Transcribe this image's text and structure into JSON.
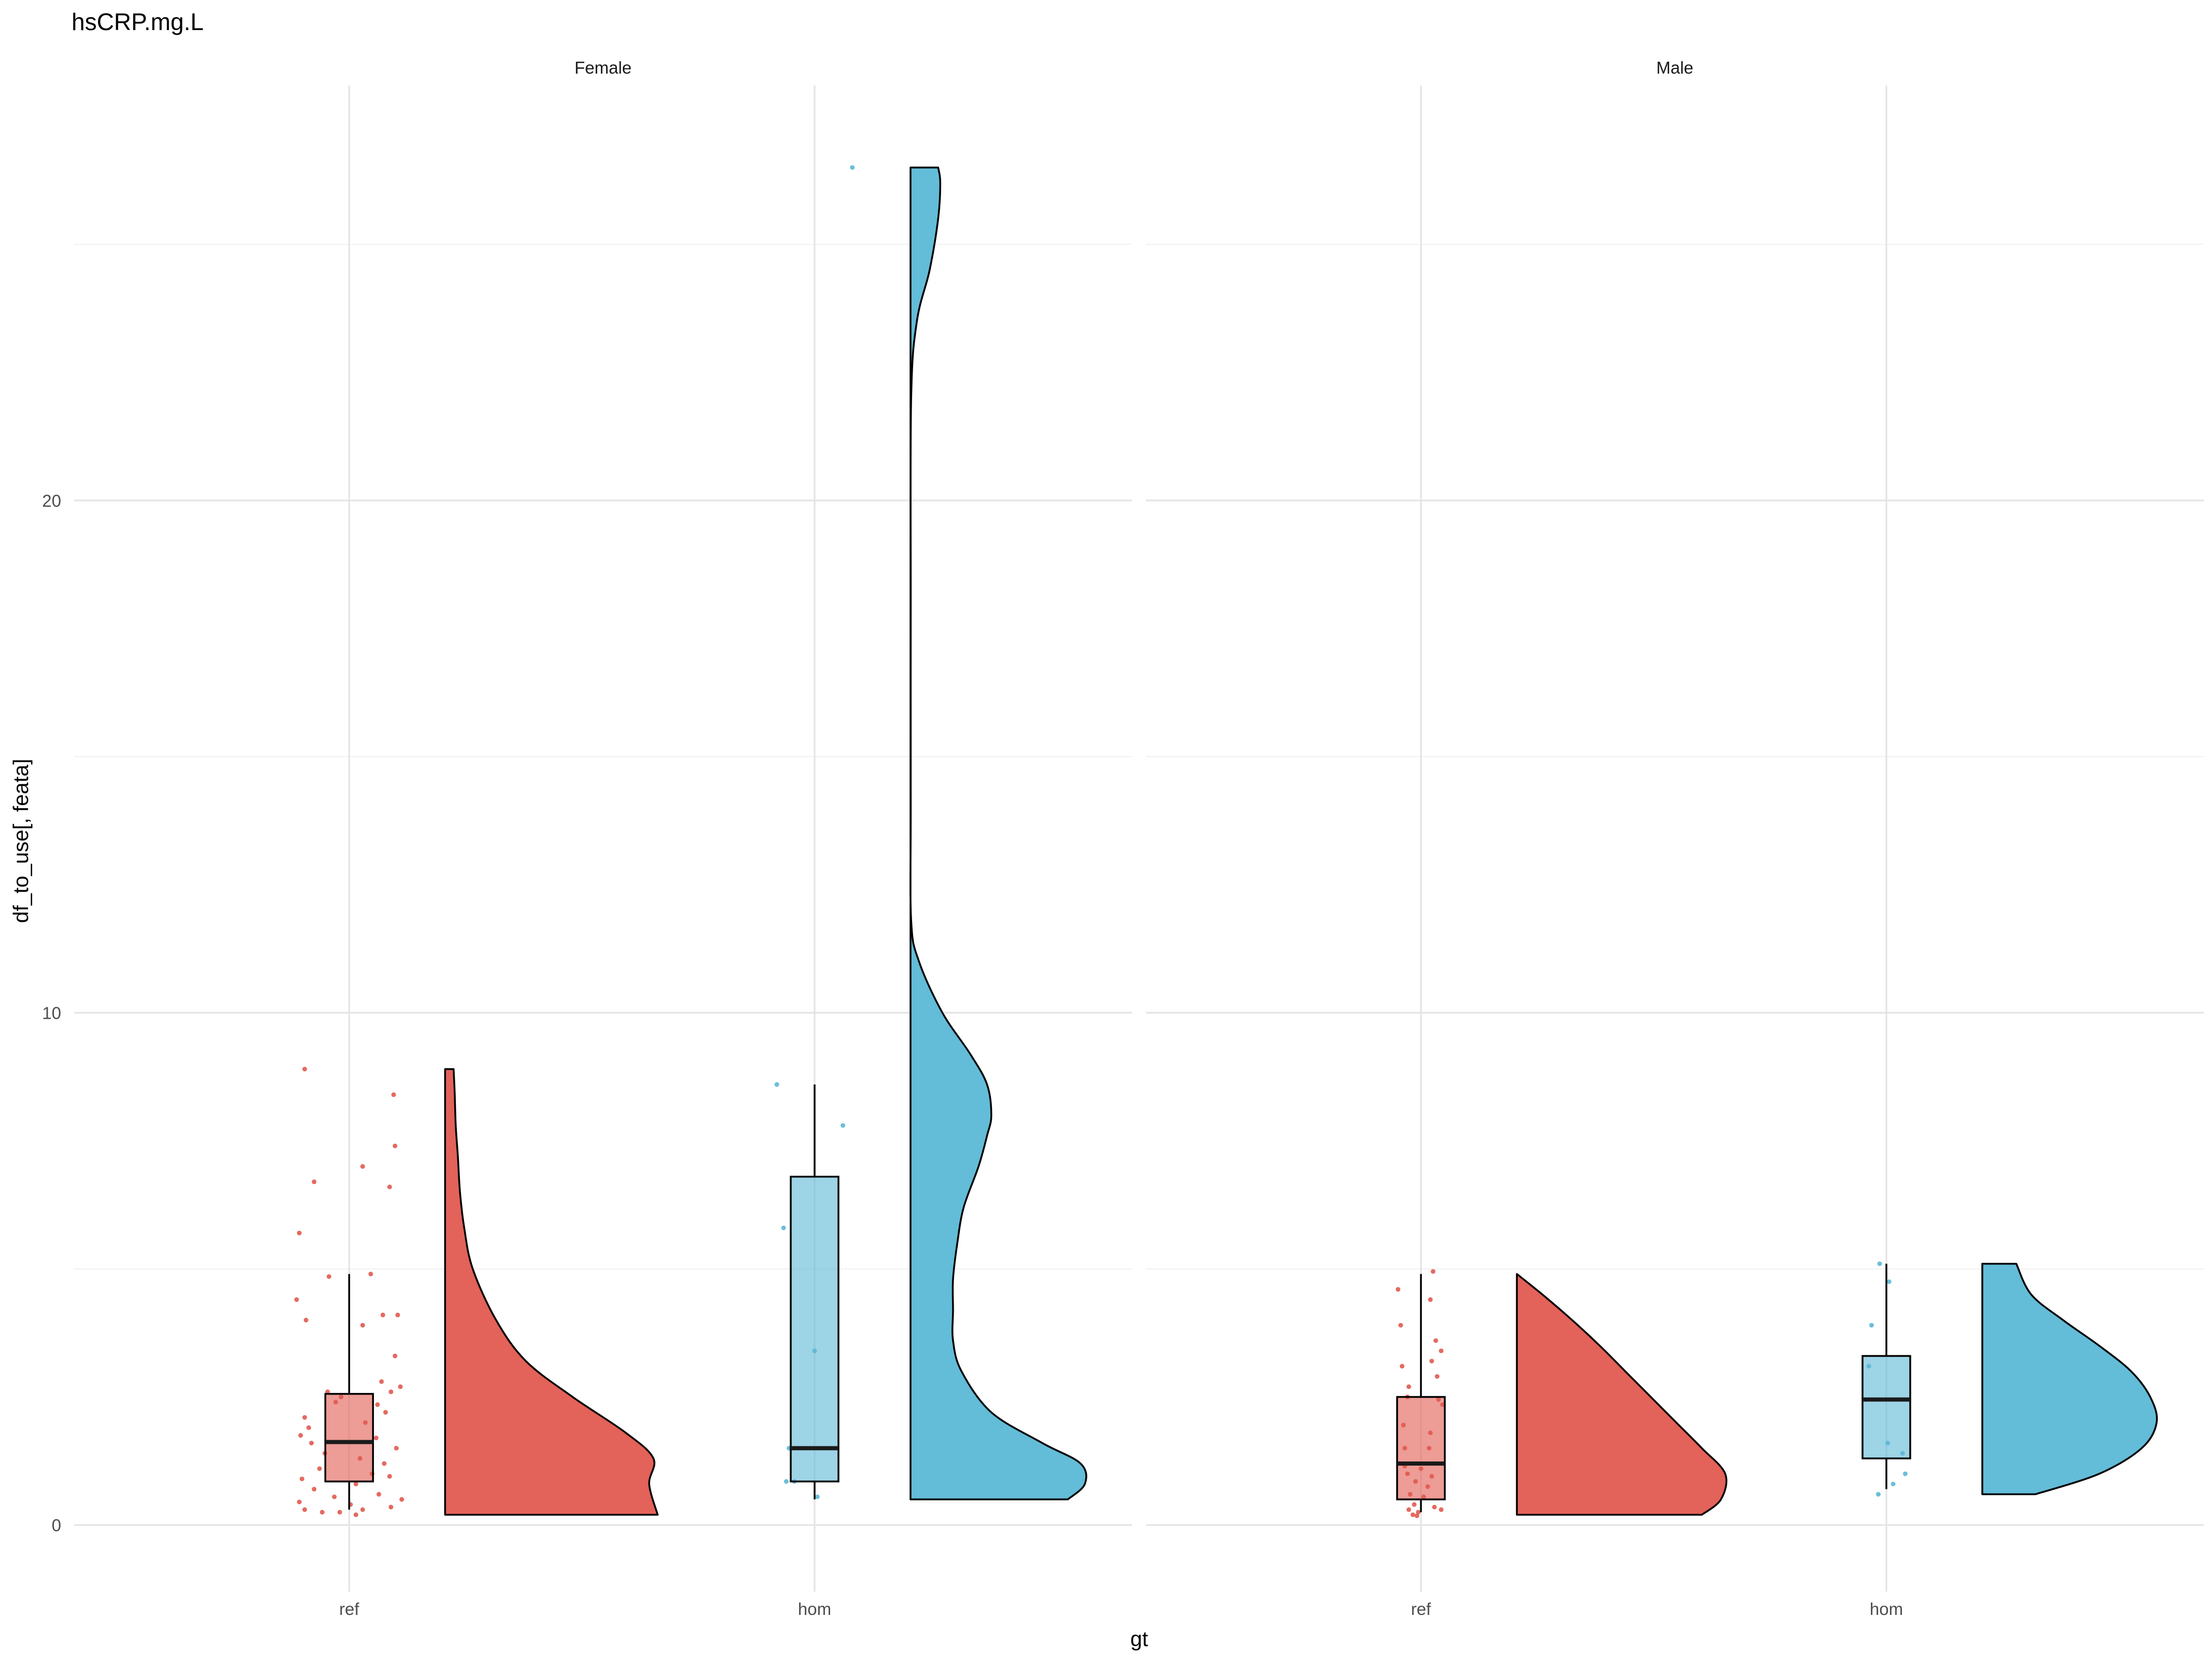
{
  "chart_data": {
    "type": "raincloud",
    "title": "hsCRP.mg.L",
    "xlabel": "gt",
    "ylabel": "df_to_use[, feata]",
    "ylim": [
      -1.3,
      28.1
    ],
    "yticks": [
      0,
      10,
      20
    ],
    "grid": true,
    "categories": [
      "ref",
      "hom"
    ],
    "colors": {
      "ref": "#E15A50",
      "hom": "#5BB8D6"
    },
    "panels": [
      {
        "label": "Female",
        "groups": [
          {
            "category": "ref",
            "color": "#E15A50",
            "box": {
              "lower_whisker": 0.3,
              "q1": 0.85,
              "median": 1.62,
              "q3": 2.56,
              "upper_whisker": 4.9
            },
            "violin": {
              "y": [
                0.2,
                0.8,
                1.3,
                1.8,
                2.5,
                3.2,
                4.0,
                5.0,
                5.8,
                6.5,
                7.2,
                7.8,
                8.45,
                8.9
              ],
              "density": [
                1.0,
                0.96,
                0.98,
                0.85,
                0.6,
                0.38,
                0.24,
                0.13,
                0.09,
                0.07,
                0.06,
                0.05,
                0.045,
                0.04
              ]
            },
            "points": [
              {
                "x": -0.33,
                "y": 8.9
              },
              {
                "x": 0.33,
                "y": 8.4
              },
              {
                "x": 0.34,
                "y": 7.4
              },
              {
                "x": 0.1,
                "y": 7.0
              },
              {
                "x": -0.26,
                "y": 6.7
              },
              {
                "x": 0.3,
                "y": 6.6
              },
              {
                "x": -0.37,
                "y": 5.7
              },
              {
                "x": 0.16,
                "y": 4.9
              },
              {
                "x": -0.15,
                "y": 4.85
              },
              {
                "x": -0.39,
                "y": 4.4
              },
              {
                "x": 0.25,
                "y": 4.1
              },
              {
                "x": 0.36,
                "y": 4.1
              },
              {
                "x": -0.32,
                "y": 4.0
              },
              {
                "x": 0.1,
                "y": 3.9
              },
              {
                "x": 0.34,
                "y": 3.3
              },
              {
                "x": 0.24,
                "y": 2.8
              },
              {
                "x": 0.31,
                "y": 2.6
              },
              {
                "x": 0.38,
                "y": 2.7
              },
              {
                "x": -0.16,
                "y": 2.6
              },
              {
                "x": -0.1,
                "y": 2.4
              },
              {
                "x": -0.06,
                "y": 2.5
              },
              {
                "x": 0.21,
                "y": 2.35
              },
              {
                "x": -0.33,
                "y": 2.1
              },
              {
                "x": 0.27,
                "y": 2.2
              },
              {
                "x": 0.12,
                "y": 2.0
              },
              {
                "x": -0.3,
                "y": 1.9
              },
              {
                "x": 0.2,
                "y": 1.7
              },
              {
                "x": -0.36,
                "y": 1.75
              },
              {
                "x": -0.28,
                "y": 1.6
              },
              {
                "x": 0.35,
                "y": 1.5
              },
              {
                "x": -0.18,
                "y": 1.4
              },
              {
                "x": 0.08,
                "y": 1.3
              },
              {
                "x": 0.26,
                "y": 1.2
              },
              {
                "x": -0.22,
                "y": 1.1
              },
              {
                "x": 0.17,
                "y": 1.0
              },
              {
                "x": 0.3,
                "y": 0.95
              },
              {
                "x": -0.35,
                "y": 0.9
              },
              {
                "x": 0.05,
                "y": 0.8
              },
              {
                "x": -0.26,
                "y": 0.7
              },
              {
                "x": 0.22,
                "y": 0.6
              },
              {
                "x": -0.11,
                "y": 0.55
              },
              {
                "x": 0.39,
                "y": 0.5
              },
              {
                "x": -0.37,
                "y": 0.45
              },
              {
                "x": 0.01,
                "y": 0.4
              },
              {
                "x": 0.31,
                "y": 0.35
              },
              {
                "x": -0.33,
                "y": 0.3
              },
              {
                "x": -0.2,
                "y": 0.25
              },
              {
                "x": 0.1,
                "y": 0.3
              },
              {
                "x": 0.05,
                "y": 0.2
              },
              {
                "x": -0.07,
                "y": 0.25
              }
            ]
          },
          {
            "category": "hom",
            "color": "#5BB8D6",
            "box": {
              "lower_whisker": 0.5,
              "q1": 0.85,
              "median": 1.5,
              "q3": 6.8,
              "upper_whisker": 8.6
            },
            "violin": {
              "y": [
                0.5,
                0.8,
                1.2,
                1.6,
                2.2,
                3.0,
                3.6,
                4.2,
                4.8,
                5.5,
                6.2,
                7.0,
                7.6,
                8.0,
                8.6,
                9.2,
                10.0,
                11.0,
                11.8,
                14.0,
                18.0,
                22.0,
                23.5,
                24.5,
                25.5,
                26.2,
                26.5
              ],
              "density": [
                0.74,
                0.82,
                0.8,
                0.62,
                0.38,
                0.24,
                0.2,
                0.2,
                0.2,
                0.22,
                0.25,
                0.32,
                0.36,
                0.38,
                0.36,
                0.28,
                0.15,
                0.04,
                0.003,
                0.001,
                0.001,
                0.003,
                0.03,
                0.09,
                0.13,
                0.14,
                0.13
              ]
            },
            "points": [
              {
                "x": -0.28,
                "y": 8.6
              },
              {
                "x": 0.21,
                "y": 7.8
              },
              {
                "x": -0.23,
                "y": 5.8
              },
              {
                "x": 0.0,
                "y": 3.4
              },
              {
                "x": -0.19,
                "y": 1.5
              },
              {
                "x": -0.06,
                "y": 1.5
              },
              {
                "x": 0.1,
                "y": 1.5
              },
              {
                "x": -0.21,
                "y": 0.85
              },
              {
                "x": -0.15,
                "y": 0.85
              },
              {
                "x": 0.02,
                "y": 0.55
              },
              {
                "x": 0.28,
                "y": 26.5
              }
            ]
          }
        ]
      },
      {
        "label": "Male",
        "groups": [
          {
            "category": "ref",
            "color": "#E15A50",
            "box": {
              "lower_whisker": 0.25,
              "q1": 0.5,
              "median": 1.2,
              "q3": 2.5,
              "upper_whisker": 4.9
            },
            "violin": {
              "y": [
                0.2,
                0.5,
                1.0,
                1.5,
                2.0,
                2.5,
                3.0,
                3.5,
                4.0,
                4.5,
                4.9
              ],
              "density": [
                0.87,
                0.96,
                0.98,
                0.87,
                0.75,
                0.63,
                0.51,
                0.39,
                0.26,
                0.12,
                0.0
              ]
            },
            "points": [
              {
                "x": 0.09,
                "y": 4.95
              },
              {
                "x": -0.17,
                "y": 4.6
              },
              {
                "x": 0.07,
                "y": 4.4
              },
              {
                "x": -0.15,
                "y": 3.9
              },
              {
                "x": 0.11,
                "y": 3.6
              },
              {
                "x": 0.15,
                "y": 3.4
              },
              {
                "x": 0.08,
                "y": 3.2
              },
              {
                "x": -0.14,
                "y": 3.1
              },
              {
                "x": 0.12,
                "y": 2.9
              },
              {
                "x": -0.09,
                "y": 2.7
              },
              {
                "x": -0.1,
                "y": 2.5
              },
              {
                "x": 0.13,
                "y": 2.45
              },
              {
                "x": 0.16,
                "y": 2.35
              },
              {
                "x": -0.13,
                "y": 1.95
              },
              {
                "x": 0.07,
                "y": 1.8
              },
              {
                "x": 0.06,
                "y": 1.5
              },
              {
                "x": -0.12,
                "y": 1.5
              },
              {
                "x": 0.11,
                "y": 1.2
              },
              {
                "x": -0.12,
                "y": 1.15
              },
              {
                "x": 0.0,
                "y": 1.1
              },
              {
                "x": -0.1,
                "y": 1.0
              },
              {
                "x": 0.08,
                "y": 0.95
              },
              {
                "x": -0.04,
                "y": 0.85
              },
              {
                "x": 0.05,
                "y": 0.75
              },
              {
                "x": -0.08,
                "y": 0.6
              },
              {
                "x": 0.02,
                "y": 0.55
              },
              {
                "x": -0.05,
                "y": 0.4
              },
              {
                "x": 0.1,
                "y": 0.35
              },
              {
                "x": -0.09,
                "y": 0.3
              },
              {
                "x": 0.15,
                "y": 0.3
              },
              {
                "x": -0.02,
                "y": 0.25
              },
              {
                "x": -0.06,
                "y": 0.2
              },
              {
                "x": -0.03,
                "y": 0.18
              }
            ]
          },
          {
            "category": "hom",
            "color": "#5BB8D6",
            "box": {
              "lower_whisker": 0.7,
              "q1": 1.3,
              "median": 2.45,
              "q3": 3.3,
              "upper_whisker": 5.1
            },
            "violin": {
              "y": [
                0.6,
                1.0,
                1.5,
                2.0,
                2.5,
                3.0,
                3.5,
                4.0,
                4.5,
                5.1
              ],
              "density": [
                0.25,
                0.55,
                0.75,
                0.82,
                0.79,
                0.7,
                0.55,
                0.38,
                0.23,
                0.16
              ]
            },
            "points": [
              {
                "x": -0.05,
                "y": 5.1
              },
              {
                "x": 0.02,
                "y": 4.75
              },
              {
                "x": -0.11,
                "y": 3.9
              },
              {
                "x": -0.13,
                "y": 3.1
              },
              {
                "x": 0.08,
                "y": 2.45
              },
              {
                "x": 0.01,
                "y": 1.6
              },
              {
                "x": 0.12,
                "y": 1.4
              },
              {
                "x": 0.14,
                "y": 1.0
              },
              {
                "x": 0.05,
                "y": 0.8
              },
              {
                "x": -0.06,
                "y": 0.6
              }
            ]
          }
        ]
      }
    ]
  }
}
